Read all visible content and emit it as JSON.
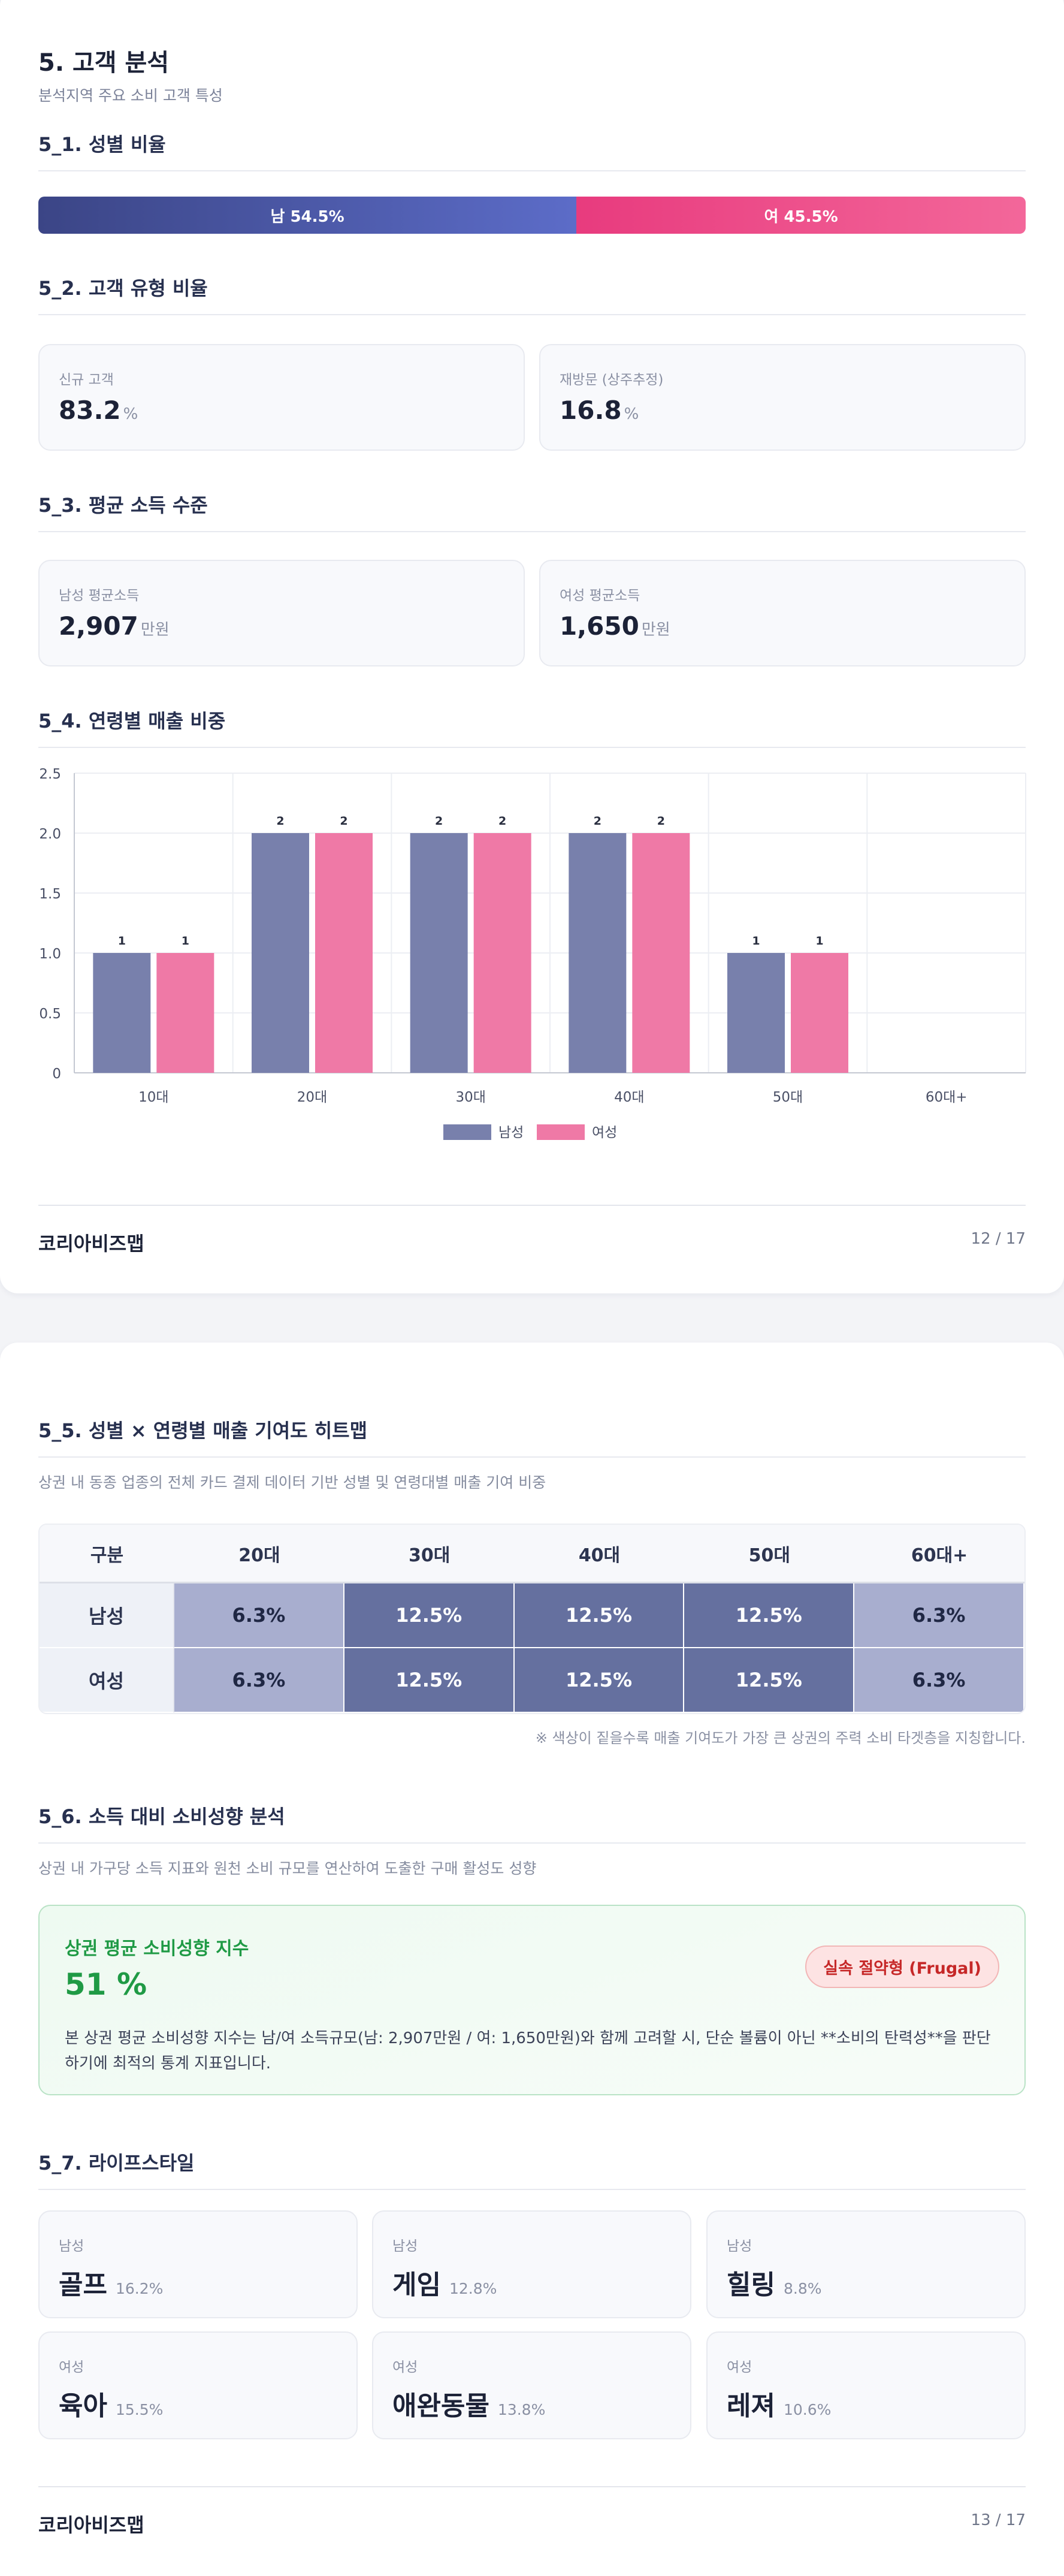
{
  "page1": {
    "title": "5. 고객 분석",
    "subtitle": "분석지역 주요 소비 고객 특성",
    "gender": {
      "title": "5_1. 성별 비율",
      "male_label": "남 54.5%",
      "female_label": "여 45.5%",
      "male_pct": 54.5,
      "female_pct": 45.5
    },
    "customer_type": {
      "title": "5_2. 고객 유형 비율",
      "cards": [
        {
          "label": "신규 고객",
          "value": "83.2",
          "unit": "%"
        },
        {
          "label": "재방문 (상주추정)",
          "value": "16.8",
          "unit": "%"
        }
      ]
    },
    "income": {
      "title": "5_3. 평균 소득 수준",
      "cards": [
        {
          "label": "남성 평균소득",
          "value": "2,907",
          "unit": "만원"
        },
        {
          "label": "여성 평균소득",
          "value": "1,650",
          "unit": "만원"
        }
      ]
    },
    "age_sales": {
      "title": "5_4. 연령별 매출 비중"
    },
    "footer": {
      "brand": "코리아비즈맵",
      "page": "12 / 17"
    }
  },
  "chart_data": {
    "type": "bar",
    "categories": [
      "10대",
      "20대",
      "30대",
      "40대",
      "50대",
      "60대+"
    ],
    "series": [
      {
        "name": "남성",
        "values": [
          1,
          2,
          2,
          2,
          1,
          0
        ],
        "color": "#7880ac"
      },
      {
        "name": "여성",
        "values": [
          1,
          2,
          2,
          2,
          1,
          0
        ],
        "color": "#ef79a6"
      }
    ],
    "ylim": [
      0,
      2.5
    ],
    "yticks": [
      "0",
      "0.5",
      "1.0",
      "1.5",
      "2.0",
      "2.5"
    ],
    "title": "",
    "xlabel": "",
    "ylabel": "",
    "grid": true,
    "legend": "bottom-center"
  },
  "page2": {
    "heatmap": {
      "title": "5_5. 성별 × 연령별 매출 기여도 히트맵",
      "desc": "상권 내 동종 업종의 전체 카드 결제 데이터 기반 성별 및 연령대별 매출 기여 비중",
      "header": [
        "구분",
        "20대",
        "30대",
        "40대",
        "50대",
        "60대+"
      ],
      "rows": [
        {
          "label": "남성",
          "cells": [
            "6.3%",
            "12.5%",
            "12.5%",
            "12.5%",
            "6.3%"
          ],
          "levels": [
            "lo",
            "hi",
            "hi",
            "hi",
            "lo"
          ]
        },
        {
          "label": "여성",
          "cells": [
            "6.3%",
            "12.5%",
            "12.5%",
            "12.5%",
            "6.3%"
          ],
          "levels": [
            "lo",
            "hi",
            "hi",
            "hi",
            "lo"
          ]
        }
      ],
      "note": "※ 색상이 짙을수록 매출 기여도가 가장 큰 상권의 주력 소비 타겟층을 지칭합니다."
    },
    "spending": {
      "title": "5_6. 소득 대비 소비성향 분석",
      "desc": "상권 내 가구당 소득 지표와 원천 소비 규모를 연산하여 도출한 구매 활성도 성향",
      "box_title": "상권 평균 소비성향 지수",
      "box_value": "51 %",
      "badge": "실속 절약형 (Frugal)",
      "box_desc": "본 상권 평균 소비성향 지수는 남/여 소득규모(남: 2,907만원 / 여: 1,650만원)와 함께 고려할 시, 단순 볼륨이 아닌 **소비의 탄력성**을 판단하기에 최적의 통계 지표입니다."
    },
    "lifestyle": {
      "title": "5_7. 라이프스타일",
      "cards": [
        {
          "gender": "남성",
          "name": "골프",
          "pct": "16.2%"
        },
        {
          "gender": "남성",
          "name": "게임",
          "pct": "12.8%"
        },
        {
          "gender": "남성",
          "name": "힐링",
          "pct": "8.8%"
        },
        {
          "gender": "여성",
          "name": "육아",
          "pct": "15.5%"
        },
        {
          "gender": "여성",
          "name": "애완동물",
          "pct": "13.8%"
        },
        {
          "gender": "여성",
          "name": "레져",
          "pct": "10.6%"
        }
      ]
    },
    "footer": {
      "brand": "코리아비즈맵",
      "page": "13 / 17"
    }
  }
}
